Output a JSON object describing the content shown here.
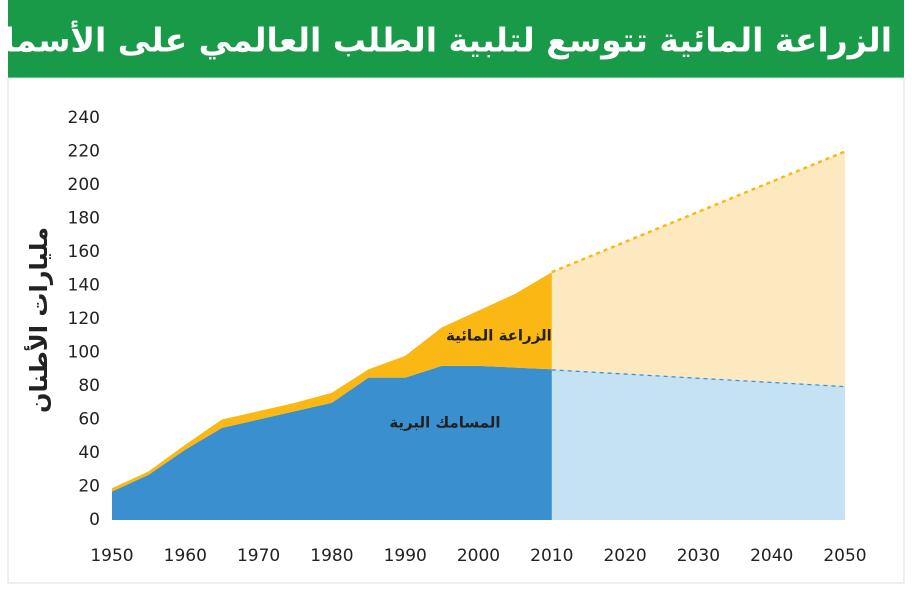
{
  "chart_data": {
    "type": "stacked_area",
    "title": "الزراعة المائية تتوسع لتلبية الطلب العالمي على الأسماك",
    "y_label": "مليارات الأطنان",
    "x": [
      1950,
      1955,
      1960,
      1965,
      1970,
      1975,
      1980,
      1985,
      1990,
      1995,
      2000,
      2005,
      2010
    ],
    "series": [
      {
        "name": "المسامك البرية",
        "color": "#3a8fcf",
        "values": [
          17,
          27,
          42,
          55,
          60,
          65,
          70,
          85,
          85,
          92,
          92,
          91,
          90
        ]
      },
      {
        "name": "الزراعة المائية",
        "color": "#fbb814",
        "values": [
          2,
          2,
          3,
          5,
          5,
          5,
          6,
          5,
          13,
          23,
          33,
          44,
          58
        ]
      }
    ],
    "projection": {
      "x": [
        2010,
        2050
      ],
      "series": [
        {
          "color": "#c4e2f4",
          "values": [
            90,
            80
          ]
        },
        {
          "color": "#fde9c0",
          "values": [
            58,
            140
          ]
        }
      ]
    },
    "xlim": [
      1950,
      2050
    ],
    "xticks": [
      1950,
      1960,
      1970,
      1980,
      1990,
      2000,
      2010,
      2020,
      2030,
      2040,
      2050
    ],
    "ylim": [
      0,
      240
    ],
    "yticks": [
      0,
      20,
      40,
      60,
      80,
      100,
      120,
      140,
      160,
      180,
      200,
      220,
      240
    ]
  }
}
